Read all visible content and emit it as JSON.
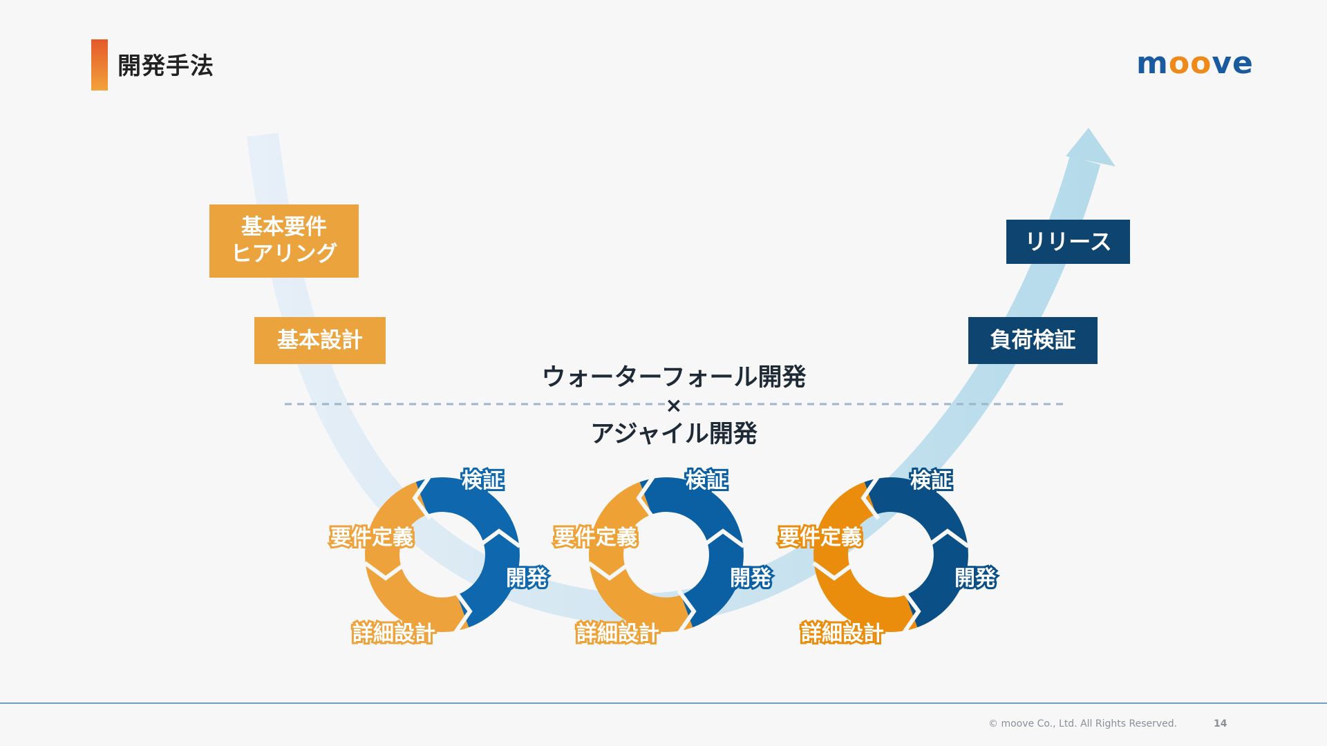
{
  "header": {
    "title": "開発手法",
    "logo_text_m": "m",
    "logo_text_oo": "oo",
    "logo_text_ve": "ve"
  },
  "waterfall": {
    "left_labels": [
      "基本要件\nヒアリング",
      "基本設計"
    ],
    "right_labels": [
      "リリース",
      "負荷検証"
    ]
  },
  "center": {
    "line1": "ウォーターフォール開発",
    "times": "×",
    "line2": "アジャイル開発"
  },
  "agile_cycles": [
    {
      "verify": "検証",
      "requirements": "要件定義",
      "develop": "開発",
      "design": "詳細設計",
      "orange": "#eda23c",
      "blue": "#0f67ad"
    },
    {
      "verify": "検証",
      "requirements": "要件定義",
      "develop": "開発",
      "design": "詳細設計",
      "orange": "#eea235",
      "blue": "#0b5fa3"
    },
    {
      "verify": "検証",
      "requirements": "要件定義",
      "develop": "開発",
      "design": "詳細設計",
      "orange": "#ea8d0c",
      "blue": "#0a4f86"
    }
  ],
  "colors": {
    "orange_box": "#eba33e",
    "navy_box": "#0d4470",
    "arrow": "#b9dcec"
  },
  "footer": {
    "copyright": "© moove Co., Ltd. All Rights Reserved.",
    "page": "14"
  }
}
